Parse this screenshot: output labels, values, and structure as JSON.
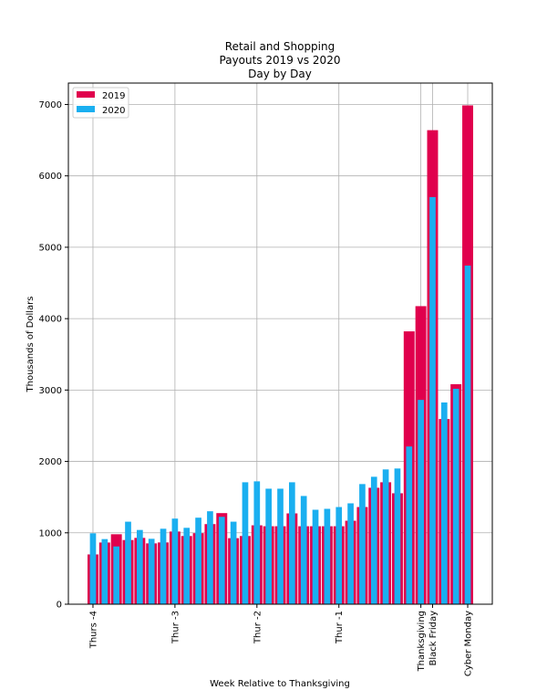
{
  "chart_data": {
    "type": "bar",
    "title_lines": [
      "Retail and Shopping",
      "Payouts 2019 vs 2020",
      "Day by Day"
    ],
    "xlabel": "Week Relative to Thanksgiving",
    "ylabel": "Thousands of Dollars",
    "ylim": [
      0,
      7300
    ],
    "yticks": [
      0,
      1000,
      2000,
      3000,
      4000,
      5000,
      6000,
      7000
    ],
    "grid": true,
    "legend_position": "top-left",
    "x_days": [
      0,
      1,
      2,
      3,
      4,
      5,
      6,
      7,
      8,
      9,
      10,
      11,
      12,
      13,
      14,
      15,
      16,
      17,
      18,
      19,
      20,
      21,
      22,
      23,
      24,
      25,
      26,
      27,
      28,
      29,
      30,
      31,
      32
    ],
    "xlim_days": [
      -2.1,
      34.1
    ],
    "xticks": [
      {
        "day": 0,
        "label": "Thurs -4"
      },
      {
        "day": 7,
        "label": "Thur -3"
      },
      {
        "day": 14,
        "label": "Thur -2"
      },
      {
        "day": 21,
        "label": "Thur -1"
      },
      {
        "day": 28,
        "label": "Thanksgiving"
      },
      {
        "day": 29,
        "label": "Black Friday"
      },
      {
        "day": 32,
        "label": "Cyber Monday"
      }
    ],
    "series": [
      {
        "name": "2019",
        "color": "#e0004d",
        "values": [
          697,
          864,
          980,
          899,
          929,
          852,
          865,
          1018,
          955,
          995,
          1122,
          1276,
          925,
          955,
          1105,
          1092,
          1092,
          1272,
          1092,
          1092,
          1092,
          1092,
          1169,
          1361,
          1631,
          1708,
          1554,
          3822,
          4175,
          6640,
          2594,
          3082,
          6987
        ]
      },
      {
        "name": "2020",
        "color": "#1aaff0",
        "values": [
          993,
          912,
          809,
          1156,
          1040,
          916,
          1057,
          1199,
          1070,
          1212,
          1302,
          1224,
          1156,
          1708,
          1721,
          1618,
          1618,
          1708,
          1516,
          1323,
          1336,
          1361,
          1413,
          1683,
          1785,
          1888,
          1901,
          2209,
          2862,
          5703,
          2826,
          3018,
          4743
        ]
      }
    ]
  }
}
